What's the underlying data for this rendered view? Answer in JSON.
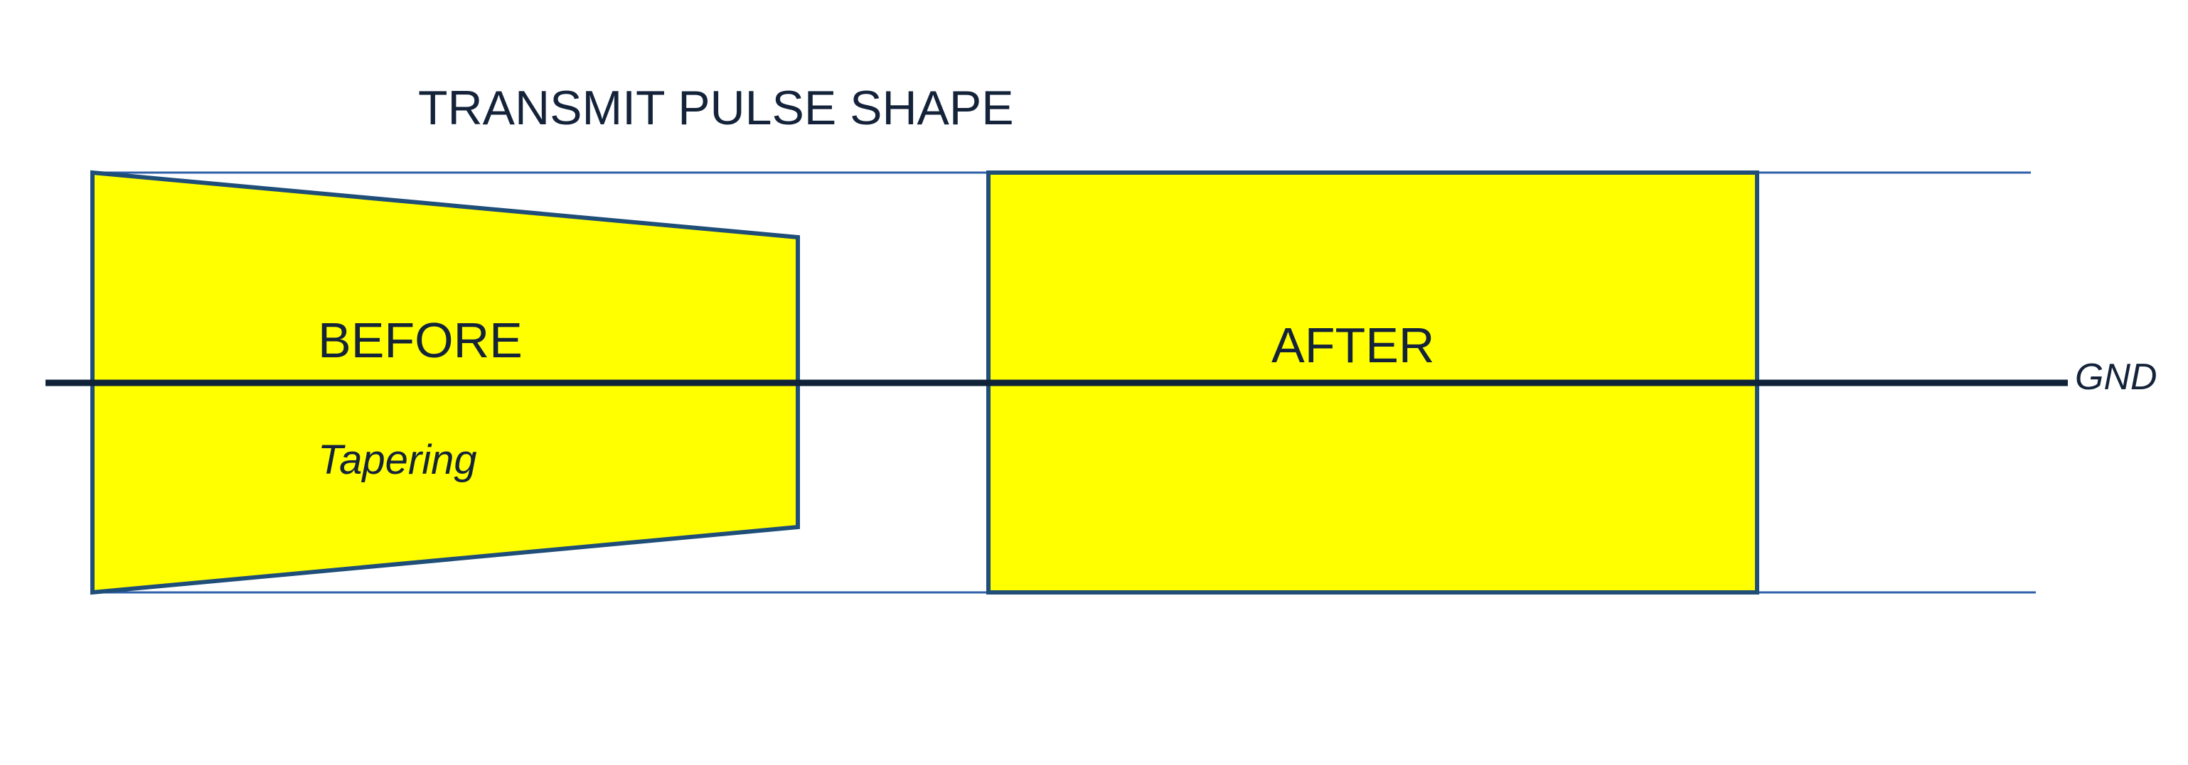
{
  "title": "TRANSMIT PULSE SHAPE",
  "before": {
    "label": "BEFORE",
    "sublabel": "Tapering"
  },
  "after": {
    "label": "AFTER"
  },
  "ground": {
    "label": "GND"
  },
  "colors": {
    "pulse_fill": "#FFFF00",
    "pulse_stroke": "#1F4E79",
    "reference_line": "#2E5FA8",
    "ground_line": "#0F2238",
    "text": "#14233A",
    "background": "#FFFFFF"
  }
}
